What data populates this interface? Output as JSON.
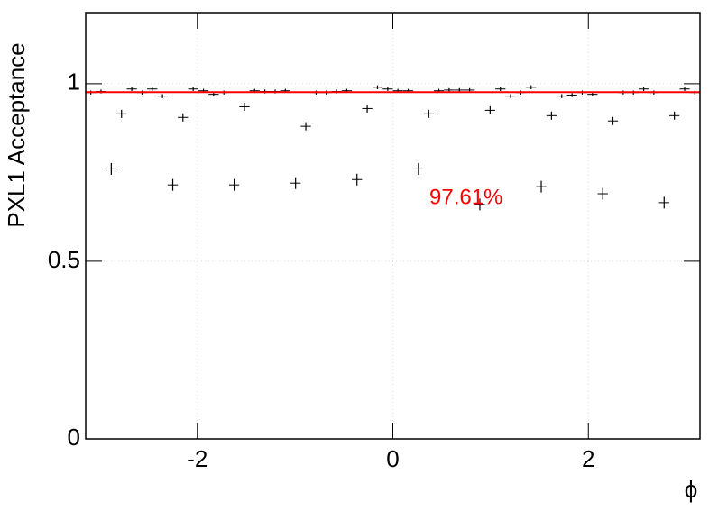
{
  "chart_data": {
    "type": "errorbar",
    "ylabel": "PXL1 Acceptance",
    "xlabel": "ϕ",
    "xlim": [
      -3.1416,
      3.1416
    ],
    "ylim": [
      0,
      1.2
    ],
    "xticks": [
      -2,
      0,
      2
    ],
    "yticks": [
      0,
      0.5,
      1
    ],
    "grid": true,
    "series": [
      {
        "color": "#000000",
        "x": [
          -3.089,
          -2.985,
          -2.88,
          -2.775,
          -2.67,
          -2.566,
          -2.461,
          -2.356,
          -2.251,
          -2.147,
          -2.042,
          -1.937,
          -1.833,
          -1.728,
          -1.623,
          -1.518,
          -1.414,
          -1.309,
          -1.204,
          -1.1,
          -0.995,
          -0.89,
          -0.785,
          -0.681,
          -0.576,
          -0.471,
          -0.367,
          -0.262,
          -0.157,
          -0.052,
          0.052,
          0.157,
          0.262,
          0.367,
          0.471,
          0.576,
          0.681,
          0.785,
          0.89,
          0.995,
          1.1,
          1.204,
          1.309,
          1.414,
          1.518,
          1.623,
          1.728,
          1.833,
          1.937,
          2.042,
          2.147,
          2.251,
          2.356,
          2.461,
          2.566,
          2.67,
          2.775,
          2.88,
          2.985,
          3.089
        ],
        "values": [
          0.975,
          0.978,
          0.76,
          0.915,
          0.985,
          0.975,
          0.985,
          0.965,
          0.715,
          0.905,
          0.985,
          0.98,
          0.97,
          0.975,
          0.715,
          0.935,
          0.98,
          0.978,
          0.978,
          0.98,
          0.72,
          0.88,
          0.975,
          0.975,
          0.978,
          0.98,
          0.73,
          0.93,
          0.99,
          0.985,
          0.98,
          0.98,
          0.76,
          0.915,
          0.98,
          0.982,
          0.982,
          0.982,
          0.66,
          0.925,
          0.985,
          0.965,
          0.975,
          0.99,
          0.71,
          0.91,
          0.965,
          0.968,
          0.975,
          0.97,
          0.69,
          0.895,
          0.975,
          0.975,
          0.985,
          0.975,
          0.665,
          0.91,
          0.985,
          0.975
        ],
        "xerr": 0.052,
        "yerr": [
          0.004,
          0.004,
          0.015,
          0.01,
          0.004,
          0.004,
          0.004,
          0.004,
          0.015,
          0.01,
          0.004,
          0.004,
          0.004,
          0.004,
          0.015,
          0.01,
          0.004,
          0.004,
          0.004,
          0.004,
          0.015,
          0.01,
          0.004,
          0.004,
          0.004,
          0.004,
          0.015,
          0.01,
          0.004,
          0.004,
          0.004,
          0.004,
          0.015,
          0.01,
          0.004,
          0.004,
          0.004,
          0.004,
          0.015,
          0.01,
          0.004,
          0.004,
          0.004,
          0.004,
          0.015,
          0.01,
          0.004,
          0.004,
          0.004,
          0.004,
          0.015,
          0.01,
          0.004,
          0.004,
          0.004,
          0.004,
          0.015,
          0.01,
          0.004,
          0.004
        ]
      }
    ],
    "fit": {
      "value": 0.9761,
      "label": "97.61%",
      "color": "#ff0000"
    }
  }
}
